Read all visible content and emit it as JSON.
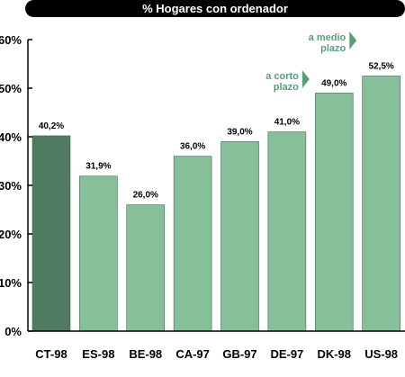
{
  "chart_data": {
    "type": "bar",
    "title": "% Hogares con ordenador",
    "xlabel": "",
    "ylabel": "",
    "categories": [
      "CT-98",
      "ES-98",
      "BE-98",
      "CA-97",
      "GB-97",
      "DE-97",
      "DK-98",
      "US-98"
    ],
    "values": [
      40.2,
      31.9,
      26.0,
      36.0,
      39.0,
      41.0,
      49.0,
      52.5
    ],
    "value_labels": [
      "40,2%",
      "31,9%",
      "26,0%",
      "36,0%",
      "39,0%",
      "41,0%",
      "49,0%",
      "52,5%"
    ],
    "ylim": [
      0,
      60
    ],
    "yticks": [
      0,
      10,
      20,
      30,
      40,
      50,
      60
    ],
    "ytick_labels": [
      "0%",
      "10%",
      "20%",
      "30%",
      "40%",
      "50%",
      "60%"
    ],
    "grid": false,
    "highlight_index": 0,
    "colors": {
      "bar": "#86bf99",
      "highlight": "#4f7a60",
      "bar_edge": "#3f6b52",
      "annotation": "#5a9e78"
    },
    "annotations": [
      {
        "lines": [
          "a corto",
          "plazo"
        ],
        "category_index": 5
      },
      {
        "lines": [
          "a medio",
          "plazo"
        ],
        "category_index": 6
      }
    ]
  }
}
